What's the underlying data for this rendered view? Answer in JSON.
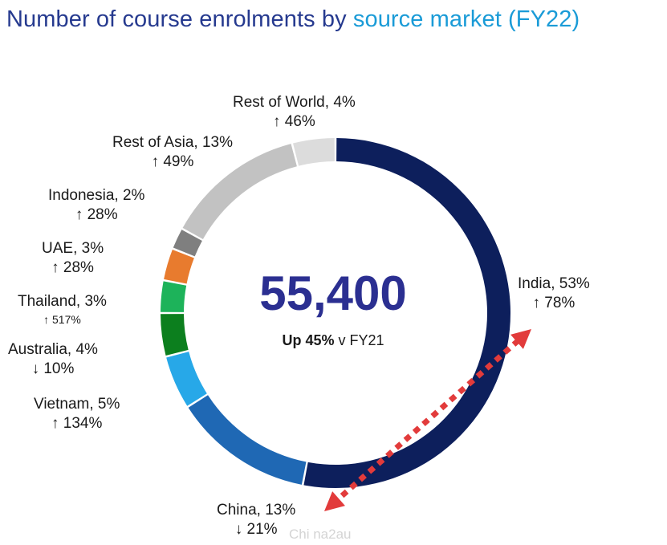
{
  "title_part1": "Number of course enrolments by",
  "title_part2": "source market (FY22)",
  "center": {
    "total": "55,400",
    "growth_bold": "Up 45%",
    "growth_rest": "v FY21"
  },
  "watermark": "Chi na2au",
  "colors": {
    "title_dark": "#263a8f",
    "title_light": "#1a9bd7",
    "center_number": "#2b2f91",
    "arrow": "#e23b3b"
  },
  "annotation": {
    "type": "double-headed dotted arrow",
    "from": "India",
    "to": "China",
    "color": "#e23b3b"
  },
  "chart_data": {
    "type": "donut",
    "title": "Number of course enrolments by source market (FY22)",
    "total": 55400,
    "segments": [
      {
        "name": "India",
        "pct": 53,
        "share": "53%",
        "change": "↑ 78%",
        "color": "#0d1f5c"
      },
      {
        "name": "China",
        "pct": 13,
        "share": "13%",
        "change": "↓ 21%",
        "color": "#1f68b4"
      },
      {
        "name": "Vietnam",
        "pct": 5,
        "share": "5%",
        "change": "↑ 134%",
        "color": "#27a8e8"
      },
      {
        "name": "Australia",
        "pct": 4,
        "share": "4%",
        "change": "↓ 10%",
        "color": "#0c7f1e"
      },
      {
        "name": "Thailand",
        "pct": 3,
        "share": "3%",
        "change": "↑ 517%",
        "color": "#1db35a"
      },
      {
        "name": "UAE",
        "pct": 3,
        "share": "3%",
        "change": "↑ 28%",
        "color": "#e87b2e"
      },
      {
        "name": "Indonesia",
        "pct": 2,
        "share": "2%",
        "change": "↑ 28%",
        "color": "#7f7f7f"
      },
      {
        "name": "Rest of Asia",
        "pct": 13,
        "share": "13%",
        "change": "↑ 49%",
        "color": "#c2c2c2"
      },
      {
        "name": "Rest of World",
        "pct": 4,
        "share": "4%",
        "change": "↑ 46%",
        "color": "#dcdcdc"
      }
    ]
  }
}
